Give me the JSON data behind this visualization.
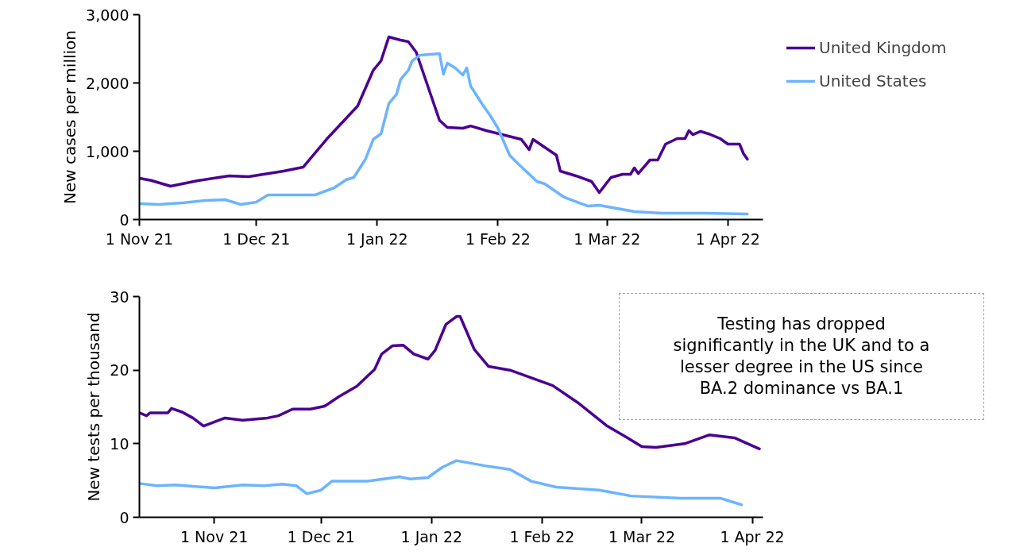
{
  "chart_data": [
    {
      "type": "line",
      "ylabel": "New cases per million",
      "legend": "right",
      "grid": false,
      "xlim": [
        "2021-11-01",
        "2022-04-10"
      ],
      "xticks": [
        {
          "value": "2021-11-01",
          "label": "1 Nov 21"
        },
        {
          "value": "2021-12-01",
          "label": "1 Dec 21"
        },
        {
          "value": "2022-01-01",
          "label": "1 Jan 22"
        },
        {
          "value": "2022-02-01",
          "label": "1 Feb 22"
        },
        {
          "value": "2022-03-01",
          "label": "1 Mar 22"
        },
        {
          "value": "2022-04-01",
          "label": "1 Apr 22"
        }
      ],
      "ylim": [
        0,
        3000
      ],
      "yticks": [
        0,
        {
          "value": 1000,
          "label": "1,000"
        },
        {
          "value": 2000,
          "label": "2,000"
        },
        {
          "value": 3000,
          "label": "3,000"
        }
      ],
      "series": [
        {
          "name": "United Kingdom",
          "color": "#4b0092",
          "x": [
            "2021-11-01",
            "2021-11-04",
            "2021-11-09",
            "2021-11-16",
            "2021-11-24",
            "2021-11-29",
            "2021-12-08",
            "2021-12-13",
            "2021-12-19",
            "2021-12-27",
            "2021-12-31",
            "2022-01-02",
            "2022-01-04",
            "2022-01-07",
            "2022-01-09",
            "2022-01-11",
            "2022-01-17",
            "2022-01-19",
            "2022-01-23",
            "2022-01-25",
            "2022-01-29",
            "2022-02-07",
            "2022-02-09",
            "2022-02-10",
            "2022-02-16",
            "2022-02-17",
            "2022-02-21",
            "2022-02-25",
            "2022-02-27",
            "2022-03-02",
            "2022-03-05",
            "2022-03-07",
            "2022-03-08",
            "2022-03-09",
            "2022-03-12",
            "2022-03-14",
            "2022-03-16",
            "2022-03-19",
            "2022-03-21",
            "2022-03-22",
            "2022-03-23",
            "2022-03-25",
            "2022-03-27",
            "2022-03-30",
            "2022-04-01",
            "2022-04-04",
            "2022-04-05",
            "2022-04-06"
          ],
          "values": [
            605,
            573,
            488,
            570,
            640,
            628,
            709,
            767,
            1174,
            1663,
            2186,
            2325,
            2674,
            2628,
            2605,
            2453,
            1453,
            1349,
            1337,
            1370,
            1302,
            1174,
            1023,
            1174,
            942,
            709,
            640,
            558,
            395,
            616,
            663,
            663,
            756,
            674,
            872,
            872,
            1105,
            1186,
            1186,
            1302,
            1244,
            1291,
            1256,
            1186,
            1105,
            1105,
            965,
            884
          ]
        },
        {
          "name": "United States",
          "color": "#6cb4ff",
          "x": [
            "2021-11-01",
            "2021-11-06",
            "2021-11-12",
            "2021-11-18",
            "2021-11-23",
            "2021-11-27",
            "2021-12-01",
            "2021-12-04",
            "2021-12-10",
            "2021-12-16",
            "2021-12-21",
            "2021-12-24",
            "2021-12-26",
            "2021-12-29",
            "2021-12-31",
            "2022-01-02",
            "2022-01-04",
            "2022-01-06",
            "2022-01-07",
            "2022-01-09",
            "2022-01-10",
            "2022-01-12",
            "2022-01-17",
            "2022-01-18",
            "2022-01-19",
            "2022-01-21",
            "2022-01-23",
            "2022-01-24",
            "2022-01-25",
            "2022-01-28",
            "2022-01-30",
            "2022-02-01",
            "2022-02-04",
            "2022-02-06",
            "2022-02-11",
            "2022-02-13",
            "2022-02-18",
            "2022-02-24",
            "2022-02-27",
            "2022-03-08",
            "2022-03-15",
            "2022-03-26",
            "2022-04-06"
          ],
          "values": [
            233,
            221,
            244,
            279,
            291,
            221,
            256,
            360,
            360,
            360,
            465,
            581,
            616,
            884,
            1174,
            1256,
            1698,
            1837,
            2047,
            2186,
            2325,
            2407,
            2430,
            2128,
            2291,
            2221,
            2116,
            2221,
            1953,
            1686,
            1523,
            1337,
            942,
            826,
            558,
            523,
            326,
            198,
            209,
            116,
            93,
            93,
            81
          ]
        }
      ]
    },
    {
      "type": "line",
      "ylabel": "New tests per thousand",
      "grid": false,
      "annotations": [
        "Testing has dropped\nsignificantly in the UK and to a\nlesser degree in the US since\nBA.2 dominance vs BA.1"
      ],
      "xlim": [
        "2021-10-11",
        "2022-04-04"
      ],
      "xticks": [
        {
          "value": "2021-11-01",
          "label": "1 Nov 21"
        },
        {
          "value": "2021-12-01",
          "label": "1 Dec 21"
        },
        {
          "value": "2022-01-01",
          "label": "1 Jan 22"
        },
        {
          "value": "2022-02-01",
          "label": "1 Feb 22"
        },
        {
          "value": "2022-03-01",
          "label": "1 Mar 22"
        },
        {
          "value": "2022-04-01",
          "label": "1 Apr 22"
        }
      ],
      "ylim": [
        0,
        30
      ],
      "yticks": [
        0,
        10,
        20,
        30
      ],
      "series": [
        {
          "color": "#4b0092",
          "x": [
            "2021-10-11",
            "2021-10-13",
            "2021-10-14",
            "2021-10-19",
            "2021-10-20",
            "2021-10-23",
            "2021-10-26",
            "2021-10-29",
            "2021-11-04",
            "2021-11-09",
            "2021-11-16",
            "2021-11-19",
            "2021-11-23",
            "2021-11-28",
            "2021-12-02",
            "2021-12-06",
            "2021-12-11",
            "2021-12-16",
            "2021-12-18",
            "2021-12-21",
            "2021-12-24",
            "2021-12-27",
            "2021-12-31",
            "2022-01-02",
            "2022-01-05",
            "2022-01-08",
            "2022-01-09",
            "2022-01-13",
            "2022-01-17",
            "2022-01-23",
            "2022-02-04",
            "2022-02-11",
            "2022-02-19",
            "2022-02-25",
            "2022-03-01",
            "2022-03-05",
            "2022-03-13",
            "2022-03-20",
            "2022-03-27",
            "2022-04-03"
          ],
          "values": [
            14.2,
            13.8,
            14.2,
            14.2,
            14.8,
            14.3,
            13.5,
            12.4,
            13.5,
            13.2,
            13.5,
            13.8,
            14.7,
            14.7,
            15.1,
            16.4,
            17.8,
            20.1,
            22.2,
            23.3,
            23.4,
            22.2,
            21.5,
            22.7,
            26.2,
            27.3,
            27.3,
            22.8,
            20.5,
            20.0,
            17.9,
            15.6,
            12.5,
            10.8,
            9.6,
            9.5,
            10.0,
            11.2,
            10.8,
            9.3
          ]
        },
        {
          "color": "#6cb4ff",
          "x": [
            "2021-10-11",
            "2021-10-16",
            "2021-10-21",
            "2021-11-01",
            "2021-11-09",
            "2021-11-15",
            "2021-11-20",
            "2021-11-24",
            "2021-11-27",
            "2021-12-01",
            "2021-12-04",
            "2021-12-14",
            "2021-12-23",
            "2021-12-26",
            "2021-12-31",
            "2022-01-04",
            "2022-01-08",
            "2022-01-16",
            "2022-01-23",
            "2022-01-29",
            "2022-02-05",
            "2022-02-17",
            "2022-02-26",
            "2022-03-12",
            "2022-03-23",
            "2022-03-29"
          ],
          "values": [
            4.6,
            4.3,
            4.4,
            4.0,
            4.4,
            4.3,
            4.5,
            4.3,
            3.2,
            3.7,
            4.9,
            4.9,
            5.5,
            5.2,
            5.4,
            6.8,
            7.7,
            7.0,
            6.5,
            4.9,
            4.1,
            3.7,
            2.9,
            2.6,
            2.6,
            1.7
          ]
        }
      ]
    }
  ]
}
